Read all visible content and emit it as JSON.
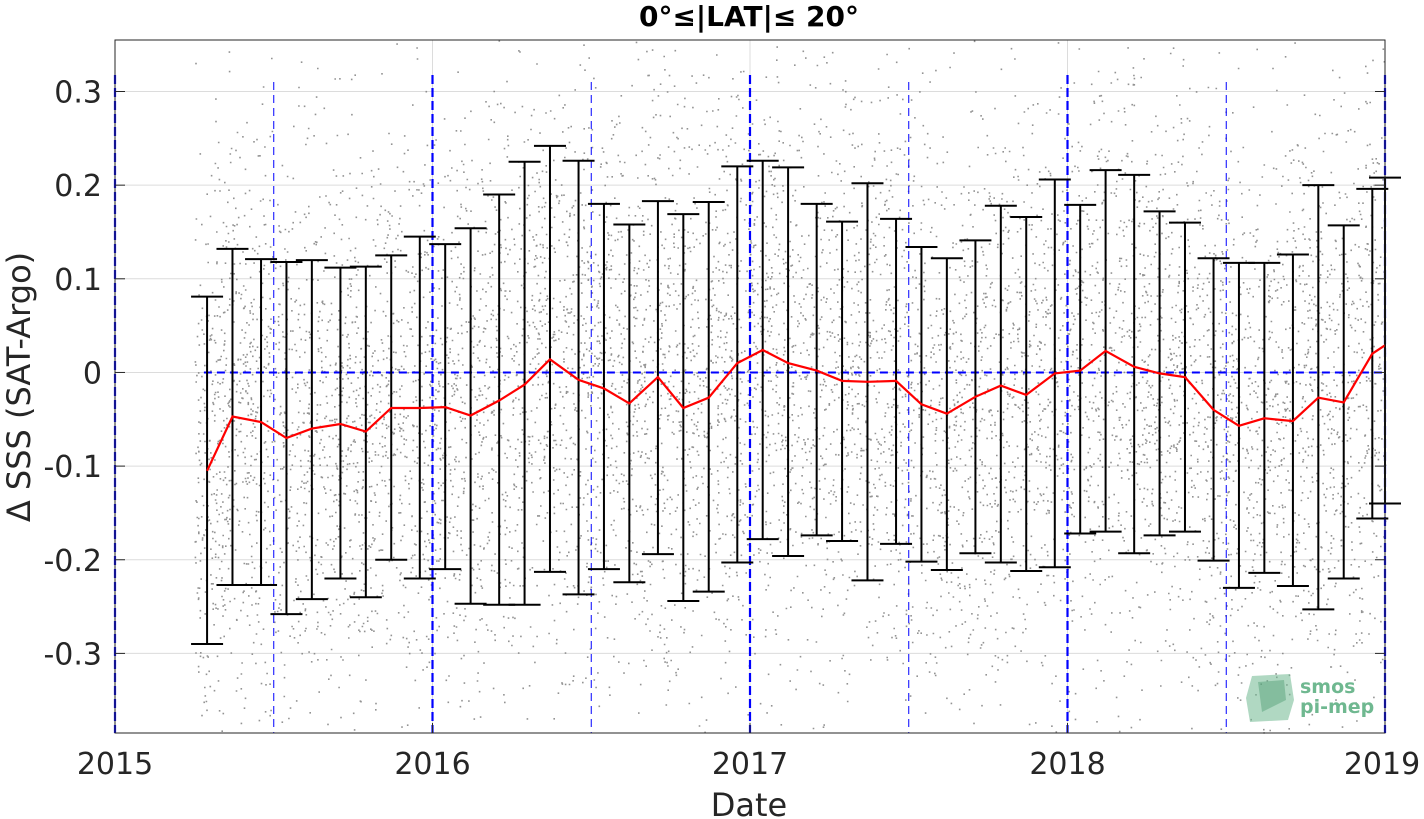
{
  "chart_data": {
    "type": "scatter",
    "title": "0°≤|LAT|≤ 20°",
    "xlabel": "Date",
    "ylabel": "Δ SSS (SAT-Argo)",
    "xlim": [
      2015.0,
      2019.0
    ],
    "ylim": [
      -0.385,
      0.355
    ],
    "x_ticks": [
      2015,
      2016,
      2017,
      2018,
      2019
    ],
    "y_ticks": [
      -0.3,
      -0.2,
      -0.1,
      0,
      0.1,
      0.2,
      0.3
    ],
    "y_tick_labels": [
      "-0.3",
      "-0.2",
      "-0.1",
      "0",
      "0.1",
      "0.2",
      "0.3"
    ],
    "grid": true,
    "zero_line": 0,
    "scatter_x_range": [
      2015.25,
      2019.0
    ],
    "monthly": {
      "x": [
        2015.29,
        2015.37,
        2015.46,
        2015.54,
        2015.62,
        2015.71,
        2015.79,
        2015.87,
        2015.96,
        2016.04,
        2016.12,
        2016.21,
        2016.29,
        2016.37,
        2016.46,
        2016.54,
        2016.62,
        2016.71,
        2016.79,
        2016.87,
        2016.96,
        2017.04,
        2017.12,
        2017.21,
        2017.29,
        2017.37,
        2017.46,
        2017.54,
        2017.62,
        2017.71,
        2017.79,
        2017.87,
        2017.96,
        2018.04,
        2018.12,
        2018.21,
        2018.29,
        2018.37,
        2018.46,
        2018.54,
        2018.62,
        2018.71,
        2018.79,
        2018.87,
        2018.96,
        2019.0
      ],
      "mean": [
        -0.105,
        -0.047,
        -0.053,
        -0.07,
        -0.06,
        -0.055,
        -0.063,
        -0.038,
        -0.038,
        -0.037,
        -0.046,
        -0.03,
        -0.013,
        0.014,
        -0.008,
        -0.017,
        -0.033,
        -0.005,
        -0.038,
        -0.027,
        0.01,
        0.024,
        0.01,
        0.002,
        -0.009,
        -0.01,
        -0.009,
        -0.034,
        -0.044,
        -0.026,
        -0.014,
        -0.024,
        -0.001,
        0.002,
        0.023,
        0.006,
        -0.001,
        -0.005,
        -0.04,
        -0.057,
        -0.049,
        -0.052,
        -0.027,
        -0.032,
        0.02,
        0.029
      ],
      "upper": [
        0.081,
        0.132,
        0.121,
        0.118,
        0.12,
        0.112,
        0.113,
        0.125,
        0.145,
        0.137,
        0.154,
        0.19,
        0.225,
        0.242,
        0.226,
        0.18,
        0.158,
        0.183,
        0.169,
        0.182,
        0.22,
        0.226,
        0.219,
        0.18,
        0.161,
        0.202,
        0.164,
        0.134,
        0.122,
        0.141,
        0.178,
        0.166,
        0.206,
        0.179,
        0.216,
        0.211,
        0.172,
        0.16,
        0.122,
        0.117,
        0.117,
        0.126,
        0.2,
        0.157,
        0.196,
        0.208
      ],
      "lower": [
        -0.29,
        -0.227,
        -0.227,
        -0.258,
        -0.242,
        -0.22,
        -0.24,
        -0.2,
        -0.22,
        -0.21,
        -0.247,
        -0.248,
        -0.248,
        -0.213,
        -0.237,
        -0.21,
        -0.224,
        -0.194,
        -0.244,
        -0.234,
        -0.203,
        -0.178,
        -0.196,
        -0.174,
        -0.18,
        -0.222,
        -0.183,
        -0.202,
        -0.211,
        -0.193,
        -0.203,
        -0.212,
        -0.208,
        -0.172,
        -0.17,
        -0.193,
        -0.174,
        -0.17,
        -0.201,
        -0.23,
        -0.214,
        -0.228,
        -0.253,
        -0.22,
        -0.156,
        -0.14
      ]
    },
    "colors": {
      "scatter": "#808080",
      "error_bars": "#000000",
      "mean_line": "#ff0000",
      "reference_lines": "#0000ff",
      "grid": "#dcdcdc",
      "axes": "#262626"
    },
    "logo": {
      "line1": "smos",
      "line2": "pi-mep",
      "color": "#6fb890"
    }
  }
}
